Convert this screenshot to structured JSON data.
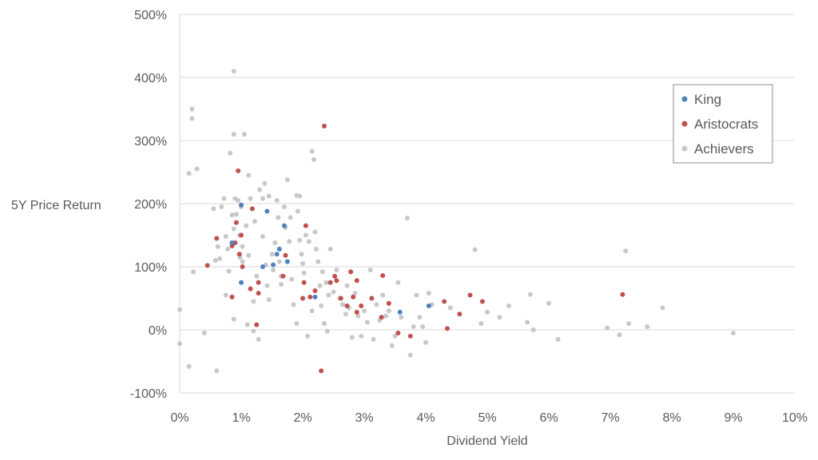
{
  "chart_data": {
    "type": "scatter",
    "title": "",
    "xlabel": "Dividend Yield",
    "ylabel": "5Y Price Return",
    "xlim": [
      0,
      10
    ],
    "ylim": [
      -100,
      500
    ],
    "x_ticks": [
      "0%",
      "1%",
      "2%",
      "3%",
      "4%",
      "5%",
      "6%",
      "7%",
      "8%",
      "9%",
      "10%"
    ],
    "y_ticks": [
      "-100%",
      "0%",
      "100%",
      "200%",
      "300%",
      "400%",
      "500%"
    ],
    "x_unit": "percent",
    "y_unit": "percent",
    "grid": "horizontal",
    "legend_position": "right",
    "series": [
      {
        "name": "Achievers",
        "color": "#c8c8c8",
        "points": [
          [
            0,
            -22
          ],
          [
            0,
            32
          ],
          [
            0.15,
            248
          ],
          [
            0.15,
            -58
          ],
          [
            0.2,
            350
          ],
          [
            0.2,
            335
          ],
          [
            0.22,
            92
          ],
          [
            0.28,
            255
          ],
          [
            0.4,
            -5
          ],
          [
            0.55,
            192
          ],
          [
            0.58,
            110
          ],
          [
            0.6,
            -65
          ],
          [
            0.62,
            132
          ],
          [
            0.65,
            113
          ],
          [
            0.68,
            195
          ],
          [
            0.72,
            208
          ],
          [
            0.75,
            148
          ],
          [
            0.75,
            55
          ],
          [
            0.78,
            128
          ],
          [
            0.8,
            93
          ],
          [
            0.82,
            280
          ],
          [
            0.85,
            182
          ],
          [
            0.85,
            133
          ],
          [
            0.88,
            410
          ],
          [
            0.88,
            310
          ],
          [
            0.88,
            160
          ],
          [
            0.88,
            17
          ],
          [
            0.9,
            208
          ],
          [
            0.92,
            183
          ],
          [
            0.95,
            205
          ],
          [
            0.97,
            150
          ],
          [
            0.98,
            115
          ],
          [
            1.0,
            195
          ],
          [
            1.02,
            132
          ],
          [
            1.02,
            108
          ],
          [
            1.05,
            310
          ],
          [
            1.08,
            165
          ],
          [
            1.1,
            8
          ],
          [
            1.12,
            245
          ],
          [
            1.12,
            118
          ],
          [
            1.15,
            208
          ],
          [
            1.2,
            -2
          ],
          [
            1.2,
            45
          ],
          [
            1.22,
            172
          ],
          [
            1.25,
            85
          ],
          [
            1.28,
            -15
          ],
          [
            1.3,
            222
          ],
          [
            1.35,
            148
          ],
          [
            1.35,
            208
          ],
          [
            1.38,
            232
          ],
          [
            1.4,
            103
          ],
          [
            1.42,
            70
          ],
          [
            1.45,
            212
          ],
          [
            1.45,
            48
          ],
          [
            1.5,
            120
          ],
          [
            1.52,
            95
          ],
          [
            1.55,
            138
          ],
          [
            1.58,
            205
          ],
          [
            1.6,
            178
          ],
          [
            1.62,
            108
          ],
          [
            1.65,
            85
          ],
          [
            1.65,
            72
          ],
          [
            1.7,
            195
          ],
          [
            1.72,
            162
          ],
          [
            1.75,
            238
          ],
          [
            1.78,
            140
          ],
          [
            1.8,
            178
          ],
          [
            1.82,
            80
          ],
          [
            1.85,
            40
          ],
          [
            1.9,
            213
          ],
          [
            1.9,
            10
          ],
          [
            1.92,
            188
          ],
          [
            1.95,
            212
          ],
          [
            1.95,
            142
          ],
          [
            1.98,
            120
          ],
          [
            2.0,
            105
          ],
          [
            2.02,
            90
          ],
          [
            2.05,
            150
          ],
          [
            2.08,
            -10
          ],
          [
            2.1,
            140
          ],
          [
            2.15,
            283
          ],
          [
            2.15,
            30
          ],
          [
            2.18,
            270
          ],
          [
            2.2,
            155
          ],
          [
            2.22,
            128
          ],
          [
            2.25,
            108
          ],
          [
            2.28,
            70
          ],
          [
            2.3,
            38
          ],
          [
            2.32,
            92
          ],
          [
            2.35,
            10
          ],
          [
            2.38,
            75
          ],
          [
            2.4,
            -2
          ],
          [
            2.42,
            55
          ],
          [
            2.45,
            128
          ],
          [
            2.5,
            60
          ],
          [
            2.55,
            95
          ],
          [
            2.6,
            50
          ],
          [
            2.65,
            40
          ],
          [
            2.7,
            25
          ],
          [
            2.72,
            70
          ],
          [
            2.75,
            35
          ],
          [
            2.8,
            -12
          ],
          [
            2.85,
            58
          ],
          [
            2.9,
            22
          ],
          [
            2.95,
            -10
          ],
          [
            3.0,
            30
          ],
          [
            3.05,
            12
          ],
          [
            3.1,
            95
          ],
          [
            3.15,
            -15
          ],
          [
            3.2,
            40
          ],
          [
            3.25,
            15
          ],
          [
            3.3,
            55
          ],
          [
            3.35,
            22
          ],
          [
            3.4,
            30
          ],
          [
            3.45,
            -25
          ],
          [
            3.5,
            -10
          ],
          [
            3.55,
            75
          ],
          [
            3.6,
            20
          ],
          [
            3.7,
            177
          ],
          [
            3.75,
            -40
          ],
          [
            3.8,
            5
          ],
          [
            3.85,
            55
          ],
          [
            3.9,
            20
          ],
          [
            3.95,
            5
          ],
          [
            4.0,
            -20
          ],
          [
            4.05,
            58
          ],
          [
            4.1,
            40
          ],
          [
            4.4,
            35
          ],
          [
            4.8,
            127
          ],
          [
            4.9,
            10
          ],
          [
            5.0,
            28
          ],
          [
            5.2,
            20
          ],
          [
            5.35,
            38
          ],
          [
            5.65,
            12
          ],
          [
            5.7,
            56
          ],
          [
            5.75,
            0
          ],
          [
            6.0,
            42
          ],
          [
            6.15,
            -15
          ],
          [
            6.95,
            3
          ],
          [
            7.15,
            -8
          ],
          [
            7.25,
            125
          ],
          [
            7.3,
            10
          ],
          [
            7.6,
            5
          ],
          [
            7.85,
            35
          ],
          [
            9.0,
            -5
          ]
        ]
      },
      {
        "name": "Aristocrats",
        "color": "#c0504d",
        "points": [
          [
            0.45,
            102
          ],
          [
            0.6,
            145
          ],
          [
            0.85,
            52
          ],
          [
            0.85,
            133
          ],
          [
            0.9,
            138
          ],
          [
            0.92,
            170
          ],
          [
            0.95,
            252
          ],
          [
            0.97,
            120
          ],
          [
            1.0,
            150
          ],
          [
            1.02,
            100
          ],
          [
            1.15,
            65
          ],
          [
            1.18,
            192
          ],
          [
            1.25,
            8
          ],
          [
            1.28,
            75
          ],
          [
            1.28,
            58
          ],
          [
            1.68,
            85
          ],
          [
            1.72,
            118
          ],
          [
            2.0,
            50
          ],
          [
            2.02,
            75
          ],
          [
            2.05,
            165
          ],
          [
            2.12,
            52
          ],
          [
            2.2,
            62
          ],
          [
            2.3,
            -65
          ],
          [
            2.35,
            323
          ],
          [
            2.45,
            75
          ],
          [
            2.52,
            85
          ],
          [
            2.55,
            78
          ],
          [
            2.62,
            50
          ],
          [
            2.72,
            38
          ],
          [
            2.78,
            92
          ],
          [
            2.82,
            52
          ],
          [
            2.88,
            78
          ],
          [
            2.88,
            28
          ],
          [
            2.95,
            38
          ],
          [
            3.12,
            50
          ],
          [
            3.28,
            20
          ],
          [
            3.3,
            86
          ],
          [
            3.4,
            42
          ],
          [
            3.55,
            -5
          ],
          [
            3.75,
            -10
          ],
          [
            4.3,
            45
          ],
          [
            4.35,
            2
          ],
          [
            4.55,
            25
          ],
          [
            4.72,
            55
          ],
          [
            4.92,
            45
          ],
          [
            7.2,
            56
          ]
        ]
      },
      {
        "name": "King",
        "color": "#4f81bd",
        "points": [
          [
            0.85,
            138
          ],
          [
            1.0,
            198
          ],
          [
            1.0,
            75
          ],
          [
            1.35,
            100
          ],
          [
            1.42,
            188
          ],
          [
            1.52,
            103
          ],
          [
            1.58,
            120
          ],
          [
            1.62,
            128
          ],
          [
            1.7,
            165
          ],
          [
            1.75,
            108
          ],
          [
            2.2,
            52
          ],
          [
            3.58,
            28
          ],
          [
            4.05,
            38
          ]
        ]
      }
    ],
    "legend_entries": [
      {
        "name": "King",
        "color": "#4f81bd"
      },
      {
        "name": "Aristocrats",
        "color": "#c0504d"
      },
      {
        "name": "Achievers",
        "color": "#c8c8c8"
      }
    ]
  }
}
